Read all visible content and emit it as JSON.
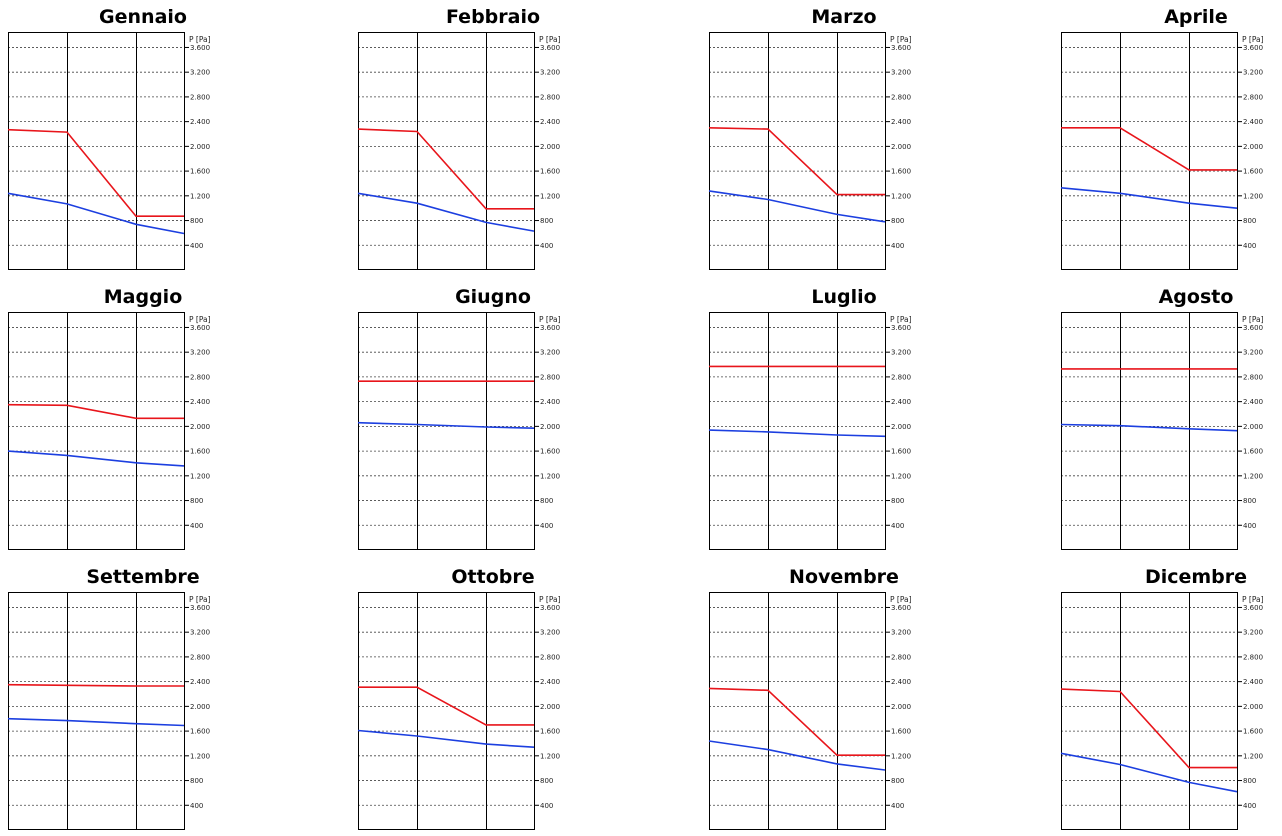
{
  "y_axis_label": "P [Pa]",
  "y_ticks": [
    "400",
    "800",
    "1.200",
    "1.600",
    "2.000",
    "2.400",
    "2.800",
    "3.200",
    "3.600"
  ],
  "colors": {
    "series_red": "#e8151b",
    "series_blue": "#1c3fe0",
    "axes": "#000000",
    "grid": "#444444"
  },
  "chart_data": [
    {
      "type": "line",
      "title": "Gennaio",
      "ylabel": "P [Pa]",
      "ylim": [
        0,
        3850
      ],
      "series": [
        {
          "color": "red",
          "points": [
            [
              0,
              2270
            ],
            [
              1,
              2230
            ],
            [
              2.2,
              870
            ],
            [
              3,
              870
            ]
          ]
        },
        {
          "color": "blue",
          "points": [
            [
              0,
              1240
            ],
            [
              1,
              1070
            ],
            [
              2.2,
              740
            ],
            [
              3,
              590
            ]
          ]
        }
      ]
    },
    {
      "type": "line",
      "title": "Febbraio",
      "ylabel": "P [Pa]",
      "ylim": [
        0,
        3850
      ],
      "series": [
        {
          "color": "red",
          "points": [
            [
              0,
              2280
            ],
            [
              1,
              2240
            ],
            [
              2.2,
              990
            ],
            [
              3,
              990
            ]
          ]
        },
        {
          "color": "blue",
          "points": [
            [
              0,
              1240
            ],
            [
              1,
              1080
            ],
            [
              2.2,
              770
            ],
            [
              3,
              630
            ]
          ]
        }
      ]
    },
    {
      "type": "line",
      "title": "Marzo",
      "ylabel": "P [Pa]",
      "ylim": [
        0,
        3850
      ],
      "series": [
        {
          "color": "red",
          "points": [
            [
              0,
              2300
            ],
            [
              1,
              2280
            ],
            [
              2.2,
              1220
            ],
            [
              3,
              1220
            ]
          ]
        },
        {
          "color": "blue",
          "points": [
            [
              0,
              1280
            ],
            [
              1,
              1140
            ],
            [
              2.2,
              900
            ],
            [
              3,
              780
            ]
          ]
        }
      ]
    },
    {
      "type": "line",
      "title": "Aprile",
      "ylabel": "P [Pa]",
      "ylim": [
        0,
        3850
      ],
      "series": [
        {
          "color": "red",
          "points": [
            [
              0,
              2300
            ],
            [
              1,
              2300
            ],
            [
              2.2,
              1620
            ],
            [
              3,
              1620
            ]
          ]
        },
        {
          "color": "blue",
          "points": [
            [
              0,
              1330
            ],
            [
              1,
              1240
            ],
            [
              2.2,
              1080
            ],
            [
              3,
              1000
            ]
          ]
        }
      ]
    },
    {
      "type": "line",
      "title": "Maggio",
      "ylabel": "P [Pa]",
      "ylim": [
        0,
        3850
      ],
      "series": [
        {
          "color": "red",
          "points": [
            [
              0,
              2350
            ],
            [
              1,
              2340
            ],
            [
              2.2,
              2130
            ],
            [
              3,
              2130
            ]
          ]
        },
        {
          "color": "blue",
          "points": [
            [
              0,
              1600
            ],
            [
              1,
              1530
            ],
            [
              2.2,
              1410
            ],
            [
              3,
              1360
            ]
          ]
        }
      ]
    },
    {
      "type": "line",
      "title": "Giugno",
      "ylabel": "P [Pa]",
      "ylim": [
        0,
        3850
      ],
      "series": [
        {
          "color": "red",
          "points": [
            [
              0,
              2730
            ],
            [
              1,
              2730
            ],
            [
              2.2,
              2730
            ],
            [
              3,
              2730
            ]
          ]
        },
        {
          "color": "blue",
          "points": [
            [
              0,
              2060
            ],
            [
              1,
              2030
            ],
            [
              2.2,
              1990
            ],
            [
              3,
              1970
            ]
          ]
        }
      ]
    },
    {
      "type": "line",
      "title": "Luglio",
      "ylabel": "P [Pa]",
      "ylim": [
        0,
        3850
      ],
      "series": [
        {
          "color": "red",
          "points": [
            [
              0,
              2970
            ],
            [
              1,
              2970
            ],
            [
              2.2,
              2970
            ],
            [
              3,
              2970
            ]
          ]
        },
        {
          "color": "blue",
          "points": [
            [
              0,
              1940
            ],
            [
              1,
              1910
            ],
            [
              2.2,
              1860
            ],
            [
              3,
              1840
            ]
          ]
        }
      ]
    },
    {
      "type": "line",
      "title": "Agosto",
      "ylabel": "P [Pa]",
      "ylim": [
        0,
        3850
      ],
      "series": [
        {
          "color": "red",
          "points": [
            [
              0,
              2930
            ],
            [
              1,
              2930
            ],
            [
              2.2,
              2930
            ],
            [
              3,
              2930
            ]
          ]
        },
        {
          "color": "blue",
          "points": [
            [
              0,
              2030
            ],
            [
              1,
              2010
            ],
            [
              2.2,
              1960
            ],
            [
              3,
              1930
            ]
          ]
        }
      ]
    },
    {
      "type": "line",
      "title": "Settembre",
      "ylabel": "P [Pa]",
      "ylim": [
        0,
        3850
      ],
      "series": [
        {
          "color": "red",
          "points": [
            [
              0,
              2350
            ],
            [
              1,
              2340
            ],
            [
              2.2,
              2330
            ],
            [
              3,
              2330
            ]
          ]
        },
        {
          "color": "blue",
          "points": [
            [
              0,
              1800
            ],
            [
              1,
              1770
            ],
            [
              2.2,
              1720
            ],
            [
              3,
              1690
            ]
          ]
        }
      ]
    },
    {
      "type": "line",
      "title": "Ottobre",
      "ylabel": "P [Pa]",
      "ylim": [
        0,
        3850
      ],
      "series": [
        {
          "color": "red",
          "points": [
            [
              0,
              2310
            ],
            [
              1,
              2310
            ],
            [
              2.2,
              1700
            ],
            [
              3,
              1700
            ]
          ]
        },
        {
          "color": "blue",
          "points": [
            [
              0,
              1610
            ],
            [
              1,
              1520
            ],
            [
              2.2,
              1390
            ],
            [
              3,
              1340
            ]
          ]
        }
      ]
    },
    {
      "type": "line",
      "title": "Novembre",
      "ylabel": "P [Pa]",
      "ylim": [
        0,
        3850
      ],
      "series": [
        {
          "color": "red",
          "points": [
            [
              0,
              2290
            ],
            [
              1,
              2260
            ],
            [
              2.2,
              1210
            ],
            [
              3,
              1210
            ]
          ]
        },
        {
          "color": "blue",
          "points": [
            [
              0,
              1440
            ],
            [
              1,
              1300
            ],
            [
              2.2,
              1070
            ],
            [
              3,
              970
            ]
          ]
        }
      ]
    },
    {
      "type": "line",
      "title": "Dicembre",
      "ylabel": "P [Pa]",
      "ylim": [
        0,
        3850
      ],
      "series": [
        {
          "color": "red",
          "points": [
            [
              0,
              2280
            ],
            [
              1,
              2240
            ],
            [
              2.2,
              1010
            ],
            [
              3,
              1010
            ]
          ]
        },
        {
          "color": "blue",
          "points": [
            [
              0,
              1240
            ],
            [
              1,
              1060
            ],
            [
              2.2,
              770
            ],
            [
              3,
              620
            ]
          ]
        }
      ]
    }
  ]
}
